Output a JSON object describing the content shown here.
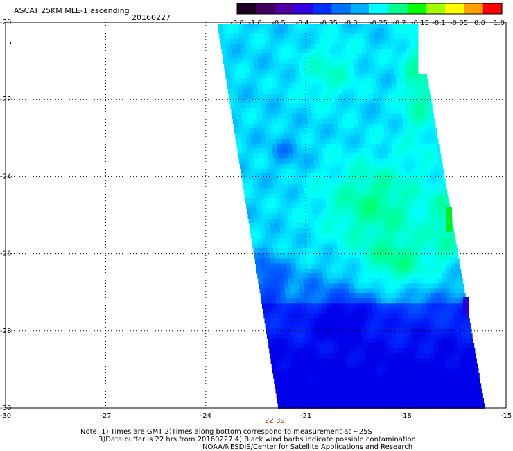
{
  "header": {
    "title": "ASCAT 25KM MLE-1 ascending",
    "date": "20160227"
  },
  "colorbar": {
    "tick_labels": [
      "-3.0",
      "-1.0",
      "-0.5",
      "-0.4",
      "-0.35",
      "-0.3",
      "-0.25",
      "-0.2",
      "-0.15",
      "-0.1",
      "-0.05",
      "0.0",
      "1.0"
    ],
    "colors": [
      "#200020",
      "#400060",
      "#5000a0",
      "#3000e0",
      "#0030ff",
      "#0070ff",
      "#00b0ff",
      "#00ffff",
      "#00ff90",
      "#00ff00",
      "#a0ff00",
      "#ffff00",
      "#ffa000",
      "#ff0000"
    ]
  },
  "map": {
    "lat_labels": [
      "-20",
      "-22",
      "-24",
      "-26",
      "-28",
      "-30"
    ],
    "lon_labels": [
      "-30",
      "-27",
      "-24",
      "-21",
      "-18",
      "-15"
    ],
    "lat_range": [
      -30,
      -20
    ],
    "lon_range": [
      -30,
      -15
    ],
    "swath_time": "22:39",
    "swath_time_color": "#cc2200"
  },
  "footer": {
    "line1": "Note: 1) Times are GMT 2)Times along bottom correspond to measurement at ~25S",
    "line2": "3)Data buffer is 22 hrs from 20160227 4) Black wind barbs indicate possible contamination",
    "line3": "NOAA/NESDIS/Center for Satellite Applications and Research"
  }
}
